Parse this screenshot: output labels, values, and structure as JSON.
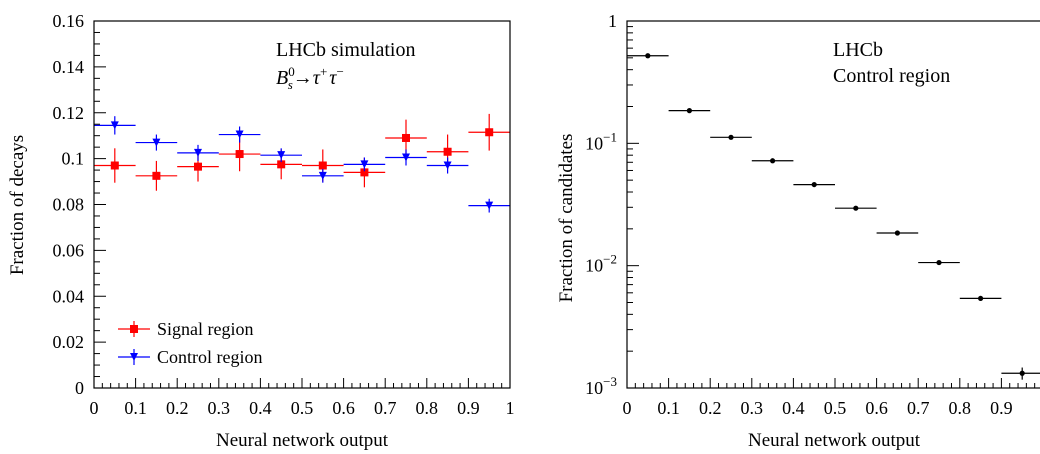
{
  "chart_data": [
    {
      "type": "scatter",
      "xlabel": "Neural network output",
      "ylabel": "Fraction of decays",
      "xlim": [
        0,
        1
      ],
      "ylim": [
        0,
        0.16
      ],
      "x_ticks": [
        "0",
        "0.1",
        "0.2",
        "0.3",
        "0.4",
        "0.5",
        "0.6",
        "0.7",
        "0.8",
        "0.9",
        "1"
      ],
      "y_ticks": [
        "0",
        "0.02",
        "0.04",
        "0.06",
        "0.08",
        "0.1",
        "0.12",
        "0.14",
        "0.16"
      ],
      "annotation": {
        "line1": "LHCb simulation",
        "line2_parts": [
          "B",
          "0",
          "s",
          "→",
          "τ",
          "+",
          "τ",
          "−"
        ]
      },
      "legend_position": "bottom-left",
      "series": [
        {
          "name": "Signal region",
          "color": "#ff0000",
          "marker": "square",
          "x": [
            0.05,
            0.15,
            0.25,
            0.35,
            0.45,
            0.55,
            0.65,
            0.75,
            0.85,
            0.95
          ],
          "xerr": 0.05,
          "y": [
            0.097,
            0.0925,
            0.0965,
            0.102,
            0.0975,
            0.097,
            0.094,
            0.109,
            0.103,
            0.1115
          ],
          "yerr": [
            0.0075,
            0.0065,
            0.0065,
            0.0075,
            0.0065,
            0.007,
            0.0065,
            0.008,
            0.0075,
            0.008
          ]
        },
        {
          "name": "Control region",
          "color": "#0000ff",
          "marker": "triangle-down",
          "x": [
            0.05,
            0.15,
            0.25,
            0.35,
            0.45,
            0.55,
            0.65,
            0.75,
            0.85,
            0.95
          ],
          "xerr": 0.05,
          "y": [
            0.1145,
            0.107,
            0.1025,
            0.1105,
            0.1015,
            0.0925,
            0.0975,
            0.1005,
            0.097,
            0.0795
          ],
          "yerr": [
            0.004,
            0.0035,
            0.0035,
            0.0035,
            0.003,
            0.003,
            0.003,
            0.0035,
            0.0035,
            0.003
          ]
        }
      ]
    },
    {
      "type": "scatter",
      "xlabel": "Neural network output",
      "ylabel": "Fraction of candidates",
      "xlim": [
        0,
        1
      ],
      "ylim": [
        0.001,
        1
      ],
      "yscale": "log",
      "x_ticks": [
        "0",
        "0.1",
        "0.2",
        "0.3",
        "0.4",
        "0.5",
        "0.6",
        "0.7",
        "0.8",
        "0.9",
        "1"
      ],
      "y_ticks": [
        {
          "base": "1",
          "exp": ""
        },
        {
          "base": "10",
          "exp": "−1"
        },
        {
          "base": "10",
          "exp": "−2"
        },
        {
          "base": "10",
          "exp": "−3"
        }
      ],
      "annotation": {
        "line1": "LHCb",
        "line2": "Control region"
      },
      "series": [
        {
          "color": "#000000",
          "marker": "circle",
          "x": [
            0.05,
            0.15,
            0.25,
            0.35,
            0.45,
            0.55,
            0.65,
            0.75,
            0.85,
            0.95
          ],
          "xerr": 0.05,
          "y": [
            0.52,
            0.185,
            0.112,
            0.072,
            0.046,
            0.0295,
            0.0185,
            0.0106,
            0.0054,
            0.00132
          ],
          "yerr": [
            0.006,
            0.003,
            0.002,
            0.0015,
            0.001,
            0.0007,
            0.0005,
            0.0003,
            0.0002,
            0.00015
          ]
        }
      ]
    }
  ]
}
